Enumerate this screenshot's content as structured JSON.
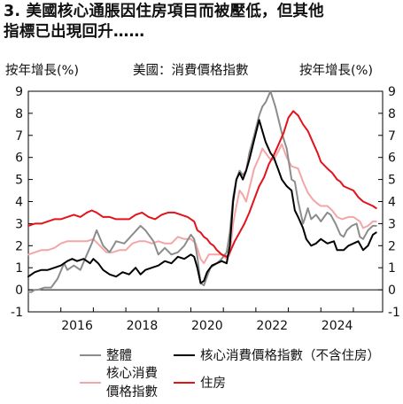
{
  "title_line1": "3. 美國核心通脹因住房項目而被壓低，但其他",
  "title_line2": "指標已出現回升……",
  "unit_left": "按年增長(%)",
  "unit_mid": "美國：消費價格指數",
  "unit_right": "按年增長(%)",
  "colors": {
    "headline": "#8c8c8c",
    "core": "#000000",
    "core_alt": "#f4a6a6",
    "housing": "#e3121b"
  },
  "chart_data": {
    "type": "line",
    "xlim": [
      2015.0,
      2025.9
    ],
    "ylim": [
      -1,
      9
    ],
    "x_ticks": [
      2016,
      2018,
      2020,
      2022,
      2024
    ],
    "x_tick_labels": [
      "2016",
      "2018",
      "2020",
      "2022",
      "2024"
    ],
    "y_ticks": [
      -1,
      0,
      1,
      2,
      3,
      4,
      5,
      6,
      7,
      8,
      9
    ],
    "y_tick_labels": [
      "-1",
      "0",
      "1",
      "2",
      "3",
      "4",
      "5",
      "6",
      "7",
      "8",
      "9"
    ],
    "grid": false,
    "legend_position": "bottom",
    "series": [
      {
        "name": "整體",
        "color_key": "headline",
        "points": [
          [
            2015.0,
            -0.1
          ],
          [
            2015.1,
            -0.1
          ],
          [
            2015.2,
            0.0
          ],
          [
            2015.3,
            0.0
          ],
          [
            2015.5,
            0.1
          ],
          [
            2015.7,
            0.1
          ],
          [
            2015.9,
            0.5
          ],
          [
            2016.1,
            1.2
          ],
          [
            2016.2,
            0.9
          ],
          [
            2016.4,
            1.1
          ],
          [
            2016.6,
            0.9
          ],
          [
            2016.8,
            1.6
          ],
          [
            2016.95,
            2.1
          ],
          [
            2017.1,
            2.7
          ],
          [
            2017.3,
            2.0
          ],
          [
            2017.5,
            1.7
          ],
          [
            2017.7,
            2.2
          ],
          [
            2017.95,
            2.1
          ],
          [
            2018.2,
            2.5
          ],
          [
            2018.45,
            2.9
          ],
          [
            2018.6,
            2.7
          ],
          [
            2018.85,
            2.2
          ],
          [
            2019.0,
            1.6
          ],
          [
            2019.2,
            1.9
          ],
          [
            2019.4,
            1.6
          ],
          [
            2019.6,
            1.7
          ],
          [
            2019.8,
            2.0
          ],
          [
            2020.0,
            2.5
          ],
          [
            2020.1,
            2.3
          ],
          [
            2020.2,
            1.5
          ],
          [
            2020.3,
            0.3
          ],
          [
            2020.4,
            0.2
          ],
          [
            2020.5,
            0.6
          ],
          [
            2020.6,
            1.0
          ],
          [
            2020.8,
            1.2
          ],
          [
            2020.95,
            1.4
          ],
          [
            2021.1,
            1.7
          ],
          [
            2021.2,
            2.6
          ],
          [
            2021.3,
            4.2
          ],
          [
            2021.4,
            5.0
          ],
          [
            2021.5,
            5.4
          ],
          [
            2021.6,
            5.2
          ],
          [
            2021.7,
            5.4
          ],
          [
            2021.8,
            6.2
          ],
          [
            2021.95,
            7.0
          ],
          [
            2022.1,
            7.9
          ],
          [
            2022.2,
            8.3
          ],
          [
            2022.3,
            8.5
          ],
          [
            2022.45,
            9.0
          ],
          [
            2022.6,
            8.3
          ],
          [
            2022.7,
            7.7
          ],
          [
            2022.8,
            7.1
          ],
          [
            2022.95,
            6.4
          ],
          [
            2023.1,
            5.0
          ],
          [
            2023.2,
            4.9
          ],
          [
            2023.3,
            4.0
          ],
          [
            2023.45,
            3.0
          ],
          [
            2023.5,
            3.2
          ],
          [
            2023.6,
            3.7
          ],
          [
            2023.7,
            3.2
          ],
          [
            2023.85,
            3.4
          ],
          [
            2024.0,
            3.1
          ],
          [
            2024.2,
            3.5
          ],
          [
            2024.3,
            3.4
          ],
          [
            2024.45,
            3.0
          ],
          [
            2024.6,
            2.5
          ],
          [
            2024.7,
            2.4
          ],
          [
            2024.8,
            2.7
          ],
          [
            2024.95,
            2.9
          ],
          [
            2025.1,
            3.0
          ],
          [
            2025.2,
            2.4
          ],
          [
            2025.3,
            2.3
          ],
          [
            2025.45,
            2.7
          ],
          [
            2025.6,
            2.9
          ],
          [
            2025.7,
            2.9
          ]
        ]
      },
      {
        "name": "核心消費價格指數（不含住房）",
        "color_key": "core",
        "points": [
          [
            2015.0,
            0.6
          ],
          [
            2015.2,
            0.8
          ],
          [
            2015.4,
            0.9
          ],
          [
            2015.6,
            0.9
          ],
          [
            2015.8,
            1.0
          ],
          [
            2016.0,
            1.1
          ],
          [
            2016.2,
            1.3
          ],
          [
            2016.35,
            1.4
          ],
          [
            2016.5,
            1.3
          ],
          [
            2016.7,
            1.4
          ],
          [
            2016.9,
            1.2
          ],
          [
            2017.0,
            1.4
          ],
          [
            2017.15,
            1.2
          ],
          [
            2017.3,
            0.9
          ],
          [
            2017.5,
            0.7
          ],
          [
            2017.7,
            0.6
          ],
          [
            2017.9,
            0.8
          ],
          [
            2018.1,
            0.7
          ],
          [
            2018.3,
            1.0
          ],
          [
            2018.45,
            0.7
          ],
          [
            2018.6,
            0.9
          ],
          [
            2018.8,
            1.0
          ],
          [
            2019.0,
            1.1
          ],
          [
            2019.2,
            1.3
          ],
          [
            2019.4,
            1.2
          ],
          [
            2019.6,
            1.5
          ],
          [
            2019.8,
            1.4
          ],
          [
            2020.0,
            1.6
          ],
          [
            2020.1,
            1.5
          ],
          [
            2020.2,
            1.0
          ],
          [
            2020.3,
            0.3
          ],
          [
            2020.4,
            0.4
          ],
          [
            2020.5,
            0.8
          ],
          [
            2020.65,
            1.1
          ],
          [
            2020.8,
            1.2
          ],
          [
            2020.95,
            1.3
          ],
          [
            2021.1,
            1.2
          ],
          [
            2021.2,
            2.0
          ],
          [
            2021.3,
            4.0
          ],
          [
            2021.4,
            5.0
          ],
          [
            2021.5,
            5.3
          ],
          [
            2021.6,
            5.0
          ],
          [
            2021.7,
            5.4
          ],
          [
            2021.8,
            5.9
          ],
          [
            2021.95,
            6.8
          ],
          [
            2022.1,
            7.7
          ],
          [
            2022.2,
            7.2
          ],
          [
            2022.3,
            6.7
          ],
          [
            2022.45,
            6.2
          ],
          [
            2022.55,
            6.0
          ],
          [
            2022.7,
            5.4
          ],
          [
            2022.8,
            5.0
          ],
          [
            2022.95,
            4.7
          ],
          [
            2023.1,
            4.5
          ],
          [
            2023.2,
            3.6
          ],
          [
            2023.3,
            3.3
          ],
          [
            2023.45,
            2.8
          ],
          [
            2023.55,
            2.3
          ],
          [
            2023.7,
            2.0
          ],
          [
            2023.85,
            2.1
          ],
          [
            2024.0,
            2.3
          ],
          [
            2024.2,
            2.1
          ],
          [
            2024.4,
            2.2
          ],
          [
            2024.5,
            1.8
          ],
          [
            2024.7,
            1.8
          ],
          [
            2024.85,
            2.0
          ],
          [
            2025.0,
            2.1
          ],
          [
            2025.15,
            2.2
          ],
          [
            2025.3,
            1.8
          ],
          [
            2025.45,
            2.0
          ],
          [
            2025.6,
            2.5
          ],
          [
            2025.7,
            2.6
          ]
        ]
      },
      {
        "name": "核心消費價格指數",
        "color_key": "core_alt",
        "points": [
          [
            2015.0,
            1.6
          ],
          [
            2015.2,
            1.7
          ],
          [
            2015.4,
            1.8
          ],
          [
            2015.6,
            1.8
          ],
          [
            2015.8,
            1.9
          ],
          [
            2016.0,
            2.1
          ],
          [
            2016.2,
            2.2
          ],
          [
            2016.4,
            2.2
          ],
          [
            2016.6,
            2.2
          ],
          [
            2016.8,
            2.2
          ],
          [
            2017.0,
            2.3
          ],
          [
            2017.2,
            2.0
          ],
          [
            2017.4,
            1.7
          ],
          [
            2017.6,
            1.7
          ],
          [
            2017.8,
            1.8
          ],
          [
            2018.0,
            1.8
          ],
          [
            2018.2,
            2.1
          ],
          [
            2018.4,
            2.2
          ],
          [
            2018.6,
            2.2
          ],
          [
            2018.8,
            2.1
          ],
          [
            2019.0,
            2.2
          ],
          [
            2019.2,
            2.1
          ],
          [
            2019.4,
            2.1
          ],
          [
            2019.6,
            2.4
          ],
          [
            2019.8,
            2.3
          ],
          [
            2020.0,
            2.3
          ],
          [
            2020.15,
            2.1
          ],
          [
            2020.3,
            1.4
          ],
          [
            2020.4,
            1.2
          ],
          [
            2020.55,
            1.6
          ],
          [
            2020.75,
            1.6
          ],
          [
            2020.95,
            1.6
          ],
          [
            2021.1,
            1.4
          ],
          [
            2021.2,
            1.6
          ],
          [
            2021.3,
            3.0
          ],
          [
            2021.4,
            3.8
          ],
          [
            2021.5,
            4.5
          ],
          [
            2021.6,
            4.3
          ],
          [
            2021.7,
            4.0
          ],
          [
            2021.8,
            4.6
          ],
          [
            2021.95,
            5.5
          ],
          [
            2022.1,
            6.0
          ],
          [
            2022.2,
            6.4
          ],
          [
            2022.3,
            6.2
          ],
          [
            2022.45,
            5.9
          ],
          [
            2022.55,
            5.9
          ],
          [
            2022.7,
            6.3
          ],
          [
            2022.8,
            6.6
          ],
          [
            2022.95,
            6.0
          ],
          [
            2023.1,
            5.6
          ],
          [
            2023.3,
            5.5
          ],
          [
            2023.45,
            4.9
          ],
          [
            2023.6,
            4.4
          ],
          [
            2023.75,
            4.1
          ],
          [
            2023.9,
            3.9
          ],
          [
            2024.0,
            3.8
          ],
          [
            2024.2,
            3.8
          ],
          [
            2024.35,
            3.6
          ],
          [
            2024.5,
            3.3
          ],
          [
            2024.65,
            3.2
          ],
          [
            2024.85,
            3.3
          ],
          [
            2025.0,
            3.3
          ],
          [
            2025.2,
            3.1
          ],
          [
            2025.3,
            2.8
          ],
          [
            2025.45,
            2.9
          ],
          [
            2025.6,
            3.1
          ],
          [
            2025.7,
            3.1
          ]
        ]
      },
      {
        "name": "住房",
        "color_key": "housing",
        "points": [
          [
            2015.0,
            2.9
          ],
          [
            2015.2,
            3.0
          ],
          [
            2015.4,
            3.0
          ],
          [
            2015.6,
            3.1
          ],
          [
            2015.8,
            3.2
          ],
          [
            2016.0,
            3.2
          ],
          [
            2016.2,
            3.3
          ],
          [
            2016.4,
            3.4
          ],
          [
            2016.6,
            3.3
          ],
          [
            2016.8,
            3.5
          ],
          [
            2016.95,
            3.6
          ],
          [
            2017.1,
            3.5
          ],
          [
            2017.3,
            3.3
          ],
          [
            2017.5,
            3.3
          ],
          [
            2017.7,
            3.2
          ],
          [
            2017.9,
            3.2
          ],
          [
            2018.1,
            3.2
          ],
          [
            2018.3,
            3.4
          ],
          [
            2018.5,
            3.5
          ],
          [
            2018.7,
            3.3
          ],
          [
            2018.9,
            3.2
          ],
          [
            2019.1,
            3.4
          ],
          [
            2019.3,
            3.5
          ],
          [
            2019.5,
            3.5
          ],
          [
            2019.7,
            3.4
          ],
          [
            2019.9,
            3.3
          ],
          [
            2020.1,
            3.1
          ],
          [
            2020.2,
            2.7
          ],
          [
            2020.3,
            2.6
          ],
          [
            2020.4,
            2.4
          ],
          [
            2020.5,
            2.3
          ],
          [
            2020.6,
            2.1
          ],
          [
            2020.7,
            2.0
          ],
          [
            2020.8,
            1.8
          ],
          [
            2020.95,
            1.6
          ],
          [
            2021.1,
            1.5
          ],
          [
            2021.2,
            1.7
          ],
          [
            2021.35,
            2.2
          ],
          [
            2021.5,
            2.6
          ],
          [
            2021.65,
            3.0
          ],
          [
            2021.8,
            3.5
          ],
          [
            2021.95,
            4.1
          ],
          [
            2022.1,
            4.7
          ],
          [
            2022.25,
            5.1
          ],
          [
            2022.4,
            5.7
          ],
          [
            2022.55,
            6.1
          ],
          [
            2022.7,
            6.6
          ],
          [
            2022.85,
            7.1
          ],
          [
            2023.0,
            7.8
          ],
          [
            2023.15,
            8.1
          ],
          [
            2023.3,
            7.9
          ],
          [
            2023.45,
            7.5
          ],
          [
            2023.6,
            7.2
          ],
          [
            2023.75,
            6.7
          ],
          [
            2023.9,
            6.2
          ],
          [
            2024.0,
            5.8
          ],
          [
            2024.2,
            5.5
          ],
          [
            2024.35,
            5.3
          ],
          [
            2024.5,
            5.0
          ],
          [
            2024.6,
            4.9
          ],
          [
            2024.7,
            4.7
          ],
          [
            2024.85,
            4.6
          ],
          [
            2025.0,
            4.5
          ],
          [
            2025.15,
            4.2
          ],
          [
            2025.3,
            4.0
          ],
          [
            2025.45,
            3.9
          ],
          [
            2025.6,
            3.8
          ],
          [
            2025.7,
            3.7
          ]
        ]
      }
    ]
  },
  "legend": {
    "headline": "整體",
    "core": "核心消費價格指數（不含住房）",
    "core_alt_line1": "核心消費",
    "core_alt_line2": "價格指數",
    "housing": "住房"
  }
}
